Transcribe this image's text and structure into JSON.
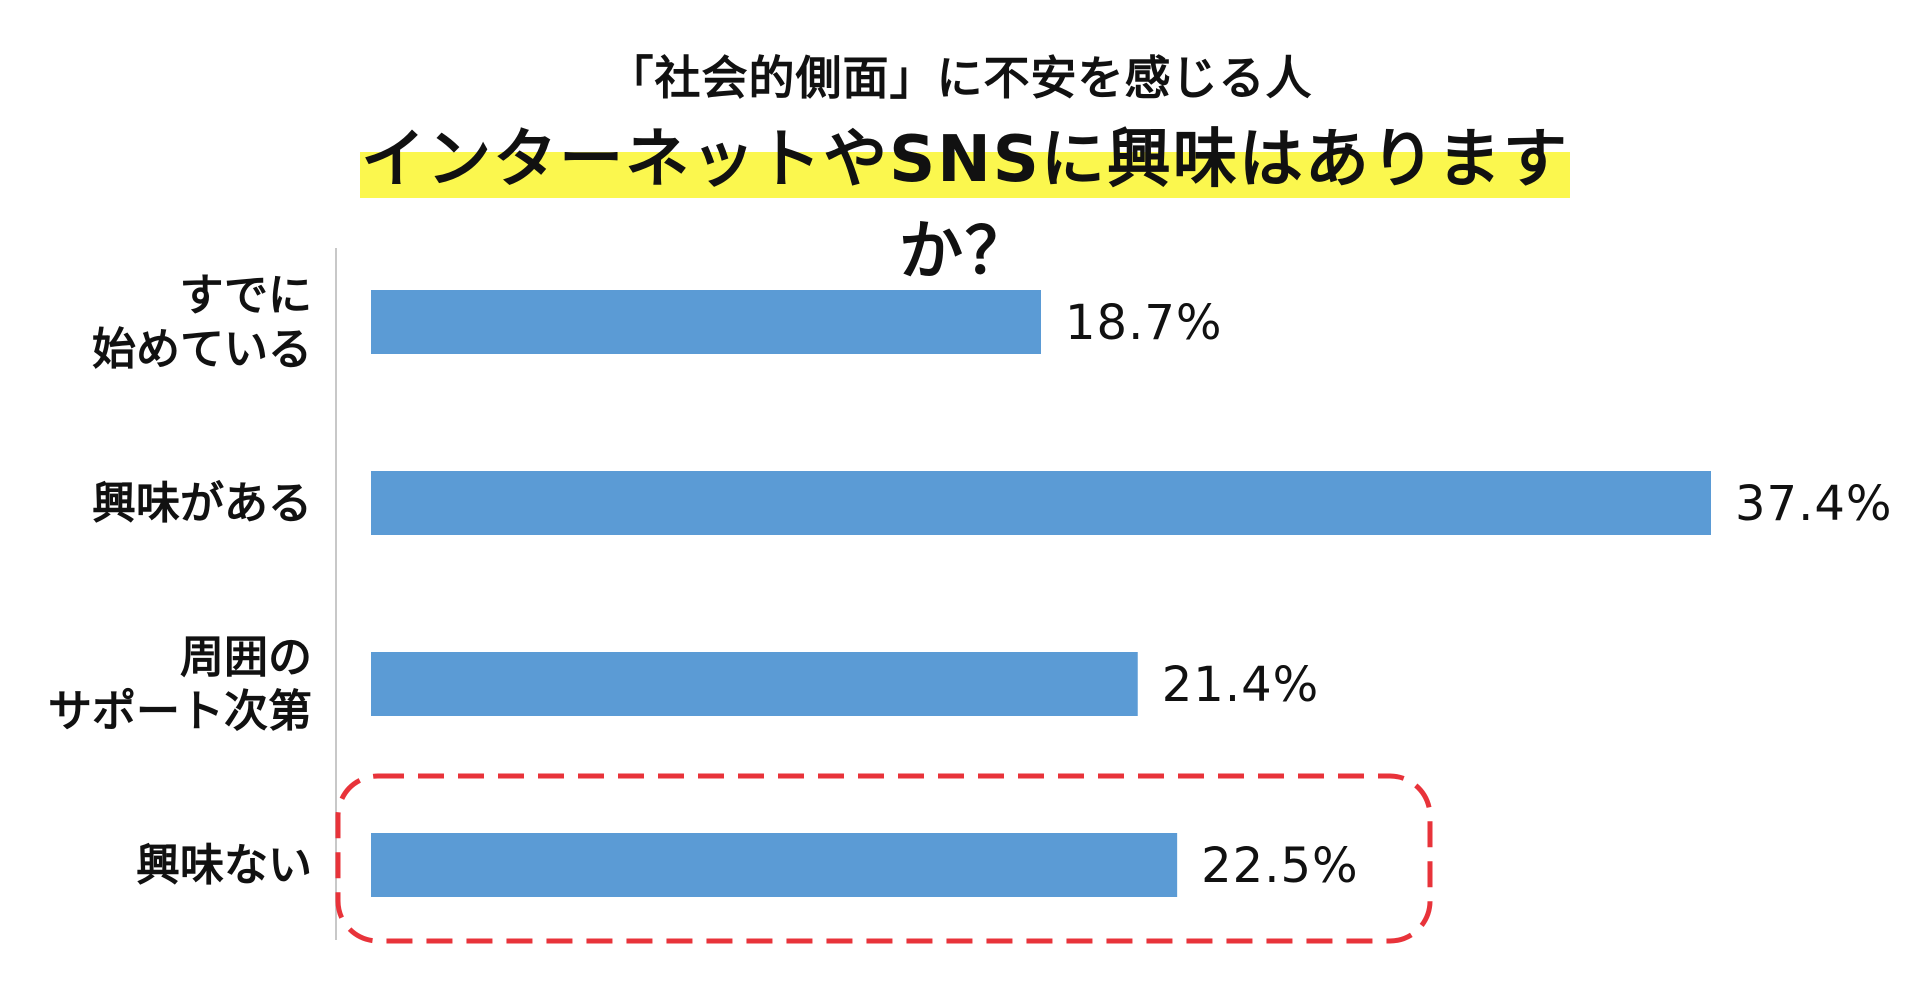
{
  "header": {
    "subtitle": "「社会的側面」に不安を感じる人",
    "title": "インターネットやSNSに興味はありますか？"
  },
  "colors": {
    "bar": "#5b9bd5",
    "highlight": "#fbf74e",
    "emphasis_frame": "#e8333a",
    "axis": "#c8c8c8"
  },
  "chart_data": {
    "type": "bar",
    "orientation": "horizontal",
    "categories": [
      [
        "すでに",
        "始めている"
      ],
      [
        "興味がある"
      ],
      [
        "周囲の",
        "サポート次第"
      ],
      [
        "興味ない"
      ]
    ],
    "values": [
      18.7,
      37.4,
      21.4,
      22.5
    ],
    "value_labels": [
      "18.7%",
      "37.4%",
      "21.4%",
      "22.5%"
    ],
    "unit": "%",
    "xlim": [
      0,
      37.4
    ],
    "grid": false,
    "highlighted_category_index": 3
  }
}
